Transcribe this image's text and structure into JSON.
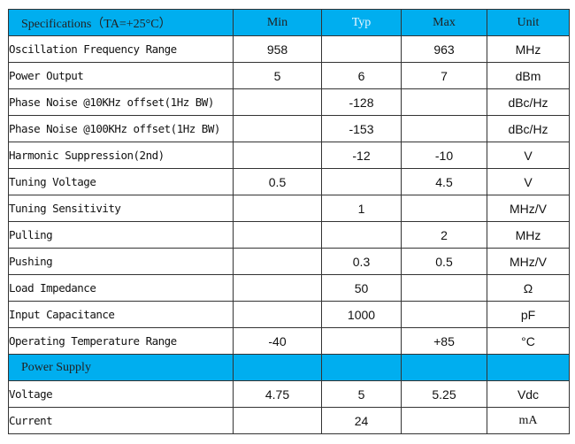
{
  "header": {
    "spec": "Specifications（TA=+25°C）",
    "min": "Min",
    "typ": "Typ",
    "max": "Max",
    "unit": "Unit"
  },
  "rows": [
    {
      "param": "Oscillation Frequency Range",
      "min": "958",
      "typ": "",
      "max": "963",
      "unit": "MHz"
    },
    {
      "param": "Power Output",
      "min": "5",
      "typ": "6",
      "max": "7",
      "unit": "dBm"
    },
    {
      "param": "Phase Noise @10KHz offset(1Hz BW)",
      "min": "",
      "typ": "-128",
      "max": "",
      "unit": "dBc/Hz"
    },
    {
      "param": "Phase Noise @100KHz offset(1Hz BW)",
      "min": "",
      "typ": "-153",
      "max": "",
      "unit": "dBc/Hz"
    },
    {
      "param": "Harmonic Suppression(2nd)",
      "min": "",
      "typ": "-12",
      "max": "-10",
      "unit": "V"
    },
    {
      "param": "Tuning Voltage",
      "min": "0.5",
      "typ": "",
      "max": "4.5",
      "unit": "V"
    },
    {
      "param": "Tuning Sensitivity",
      "min": "",
      "typ": "1",
      "max": "",
      "unit": "MHz/V"
    },
    {
      "param": "Pulling",
      "min": "",
      "typ": "",
      "max": "2",
      "unit": "MHz"
    },
    {
      "param": "Pushing",
      "min": "",
      "typ": "0.3",
      "max": "0.5",
      "unit": "MHz/V"
    },
    {
      "param": "Load Impedance",
      "min": "",
      "typ": "50",
      "max": "",
      "unit": "Ω"
    },
    {
      "param": "Input Capacitance",
      "min": "",
      "typ": "1000",
      "max": "",
      "unit": "pF"
    },
    {
      "param": "Operating Temperature Range",
      "min": "-40",
      "typ": "",
      "max": "+85",
      "unit": "°C"
    }
  ],
  "power_supply": {
    "title": "Power Supply",
    "rows": [
      {
        "param": "Voltage",
        "min": "4.75",
        "typ": "5",
        "max": "5.25",
        "unit": "Vdc"
      },
      {
        "param": "Current",
        "min": "",
        "typ": "24",
        "max": "",
        "unit": "mA"
      }
    ]
  },
  "colors": {
    "header_bg": "#00aeef"
  }
}
